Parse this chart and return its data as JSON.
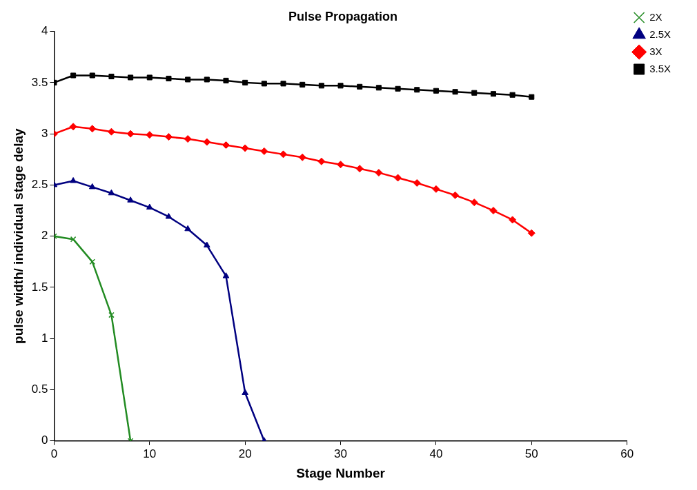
{
  "chart_data": {
    "type": "line",
    "title": "Pulse Propagation",
    "xlabel": "Stage Number",
    "ylabel": "pulse width/ individual stage delay",
    "xlim": [
      0,
      60
    ],
    "xticks": [
      0,
      10,
      20,
      30,
      40,
      50,
      60
    ],
    "ylim": [
      0,
      4
    ],
    "yticks": [
      0,
      0.5,
      1,
      1.5,
      2,
      2.5,
      3,
      3.5,
      4
    ],
    "grid": false,
    "legend": "top right",
    "line_style": "solid",
    "series": [
      {
        "name": "2X",
        "color": "#228b22",
        "marker": "cross",
        "x": [
          0,
          2,
          4,
          6,
          8
        ],
        "values": [
          2.0,
          1.97,
          1.75,
          1.23,
          0
        ]
      },
      {
        "name": "2.5X",
        "color": "#000080",
        "marker": "triangle",
        "x": [
          0,
          2,
          4,
          6,
          8,
          10,
          12,
          14,
          16,
          18,
          20,
          22
        ],
        "values": [
          2.5,
          2.54,
          2.48,
          2.42,
          2.35,
          2.28,
          2.19,
          2.07,
          1.91,
          1.61,
          0.47,
          0
        ]
      },
      {
        "name": "3X",
        "color": "#ff0000",
        "marker": "diamond",
        "x": [
          0,
          2,
          4,
          6,
          8,
          10,
          12,
          14,
          16,
          18,
          20,
          22,
          24,
          26,
          28,
          30,
          32,
          34,
          36,
          38,
          40,
          42,
          44,
          46,
          48,
          50
        ],
        "values": [
          3.0,
          3.07,
          3.05,
          3.02,
          3.0,
          2.99,
          2.97,
          2.95,
          2.92,
          2.89,
          2.86,
          2.83,
          2.8,
          2.77,
          2.73,
          2.7,
          2.66,
          2.62,
          2.57,
          2.52,
          2.46,
          2.4,
          2.33,
          2.25,
          2.16,
          2.03
        ]
      },
      {
        "name": "3.5X",
        "color": "#000000",
        "marker": "square",
        "x": [
          0,
          2,
          4,
          6,
          8,
          10,
          12,
          14,
          16,
          18,
          20,
          22,
          24,
          26,
          28,
          30,
          32,
          34,
          36,
          38,
          40,
          42,
          44,
          46,
          48,
          50
        ],
        "values": [
          3.5,
          3.57,
          3.57,
          3.56,
          3.55,
          3.55,
          3.54,
          3.53,
          3.53,
          3.52,
          3.5,
          3.49,
          3.49,
          3.48,
          3.47,
          3.47,
          3.46,
          3.45,
          3.44,
          3.43,
          3.42,
          3.41,
          3.4,
          3.39,
          3.38,
          3.36
        ]
      }
    ]
  }
}
